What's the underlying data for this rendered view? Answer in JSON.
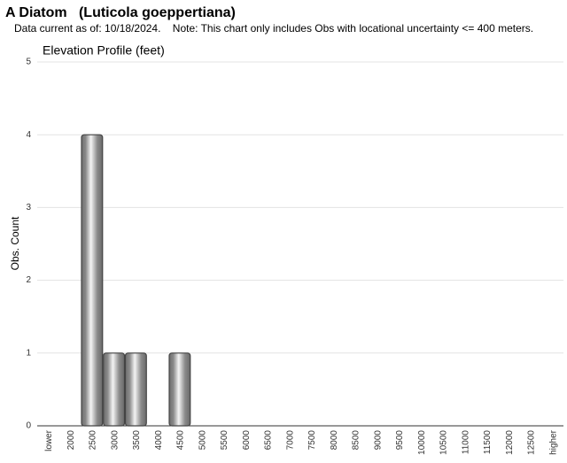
{
  "chart_data": {
    "type": "bar",
    "title": "A Diatom   (Luticola goeppertiana)",
    "subtitle": "Data current as of: 10/18/2024.    Note: This chart only includes Obs with locational uncertainty <= 400 meters.",
    "chart_title": "Elevation Profile (feet)",
    "y_label": "Obs. Count",
    "categories": [
      "lower",
      "2000",
      "2500",
      "3000",
      "3500",
      "4000",
      "4500",
      "5000",
      "5500",
      "6000",
      "6500",
      "7000",
      "7500",
      "8000",
      "8500",
      "9000",
      "9500",
      "10000",
      "10500",
      "11000",
      "11500",
      "12000",
      "12500",
      "higher"
    ],
    "values": [
      0,
      0,
      4,
      1,
      1,
      0,
      1,
      0,
      0,
      0,
      0,
      0,
      0,
      0,
      0,
      0,
      0,
      0,
      0,
      0,
      0,
      0,
      0,
      0
    ],
    "color": "#8a8a8a",
    "ylim": [
      0,
      5
    ],
    "yticks": [
      0,
      1,
      2,
      3,
      4,
      5
    ],
    "grid": true
  }
}
